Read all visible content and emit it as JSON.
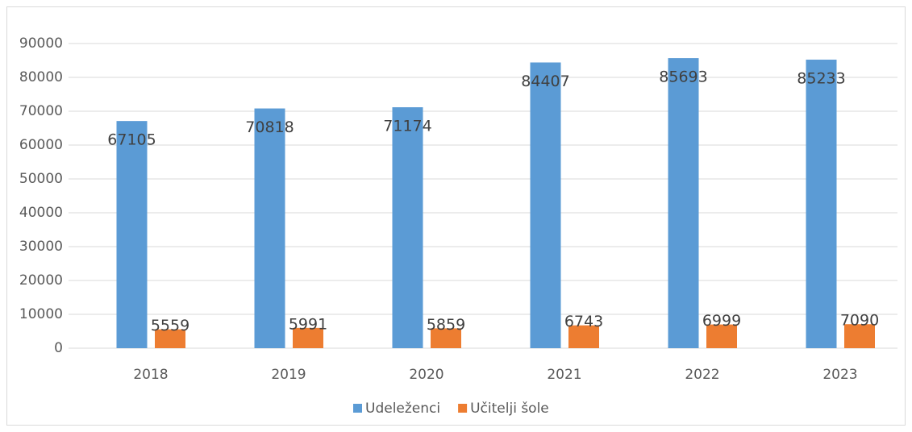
{
  "chart_data": {
    "type": "bar",
    "categories": [
      "2018",
      "2019",
      "2020",
      "2021",
      "2022",
      "2023"
    ],
    "series": [
      {
        "name": "Udeleženci",
        "color": "#5b9bd5",
        "values": [
          67105,
          70818,
          71174,
          84407,
          85693,
          85233
        ]
      },
      {
        "name": "Učitelji šole",
        "color": "#ed7d31",
        "values": [
          5559,
          5991,
          5859,
          6743,
          6999,
          7090
        ]
      }
    ],
    "ylim": [
      0,
      90000
    ],
    "yticks": [
      0,
      10000,
      20000,
      30000,
      40000,
      50000,
      60000,
      70000,
      80000,
      90000
    ],
    "grid": true,
    "legend": "bottom"
  }
}
